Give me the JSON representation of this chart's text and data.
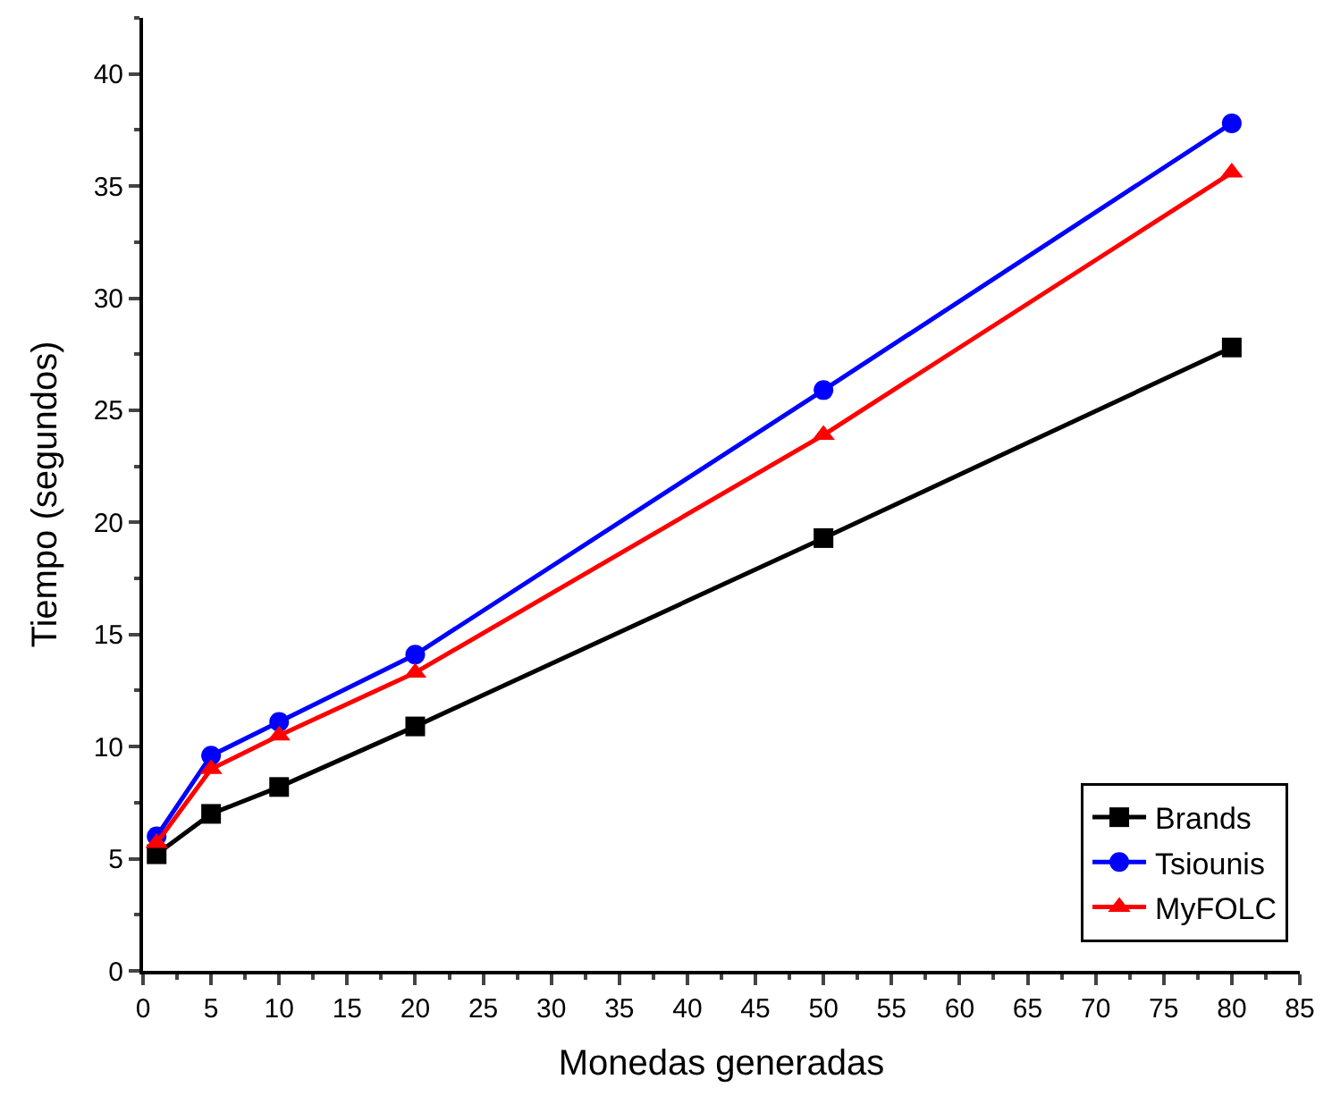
{
  "chart_data": {
    "type": "line",
    "xlabel": "Monedas generadas",
    "ylabel": "Tiempo (segundos)",
    "x": [
      1,
      5,
      10,
      20,
      50,
      80
    ],
    "series": [
      {
        "name": "Brands",
        "color": "#000000",
        "marker": "square",
        "values": [
          5.2,
          7.0,
          8.2,
          10.9,
          19.3,
          27.8
        ]
      },
      {
        "name": "Tsiounis",
        "color": "#0000ff",
        "marker": "circle",
        "values": [
          6.0,
          9.6,
          11.1,
          14.1,
          25.9,
          37.8
        ]
      },
      {
        "name": "MyFOLC",
        "color": "#ff0000",
        "marker": "triangle",
        "values": [
          5.7,
          9.0,
          10.5,
          13.3,
          23.9,
          35.6
        ]
      }
    ],
    "xlim": [
      0,
      85
    ],
    "xticks": [
      0,
      5,
      10,
      15,
      20,
      25,
      30,
      35,
      40,
      45,
      50,
      55,
      60,
      65,
      70,
      75,
      80,
      85
    ],
    "ylim": [
      0,
      42.5
    ],
    "yticks": [
      0,
      5,
      10,
      15,
      20,
      25,
      30,
      35,
      40
    ],
    "legend": "bottom right",
    "line_style": "solid"
  }
}
